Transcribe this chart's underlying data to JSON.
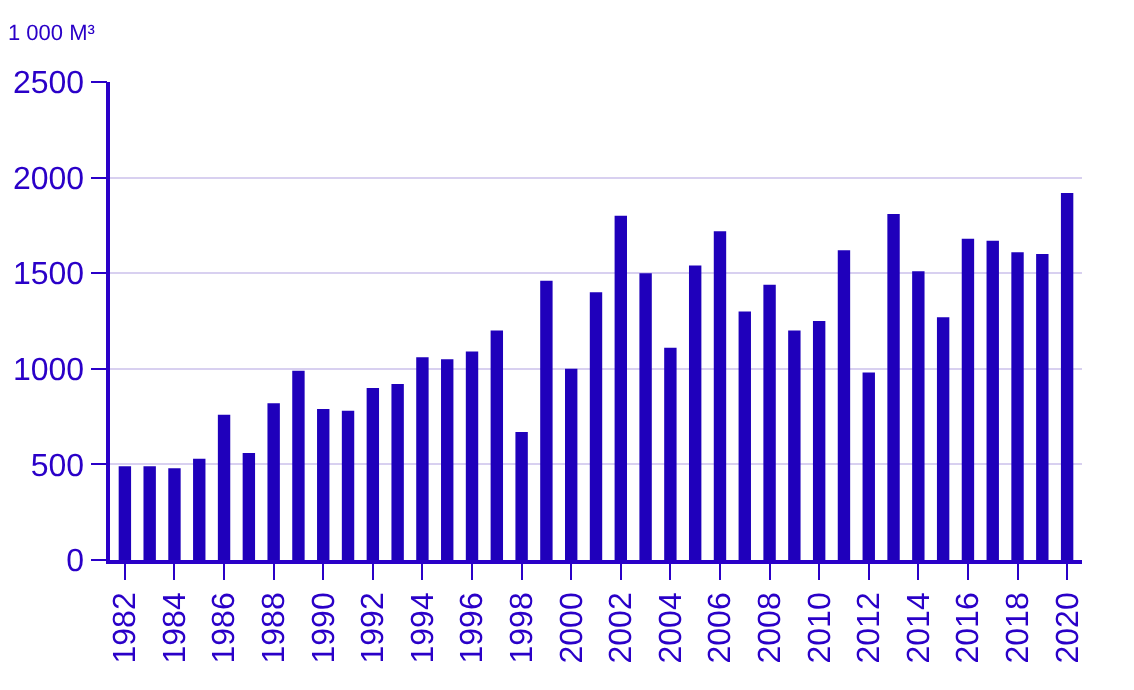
{
  "chart_data": {
    "type": "bar",
    "ylabel": "1 000 M³",
    "categories": [
      "1982",
      null,
      "1984",
      null,
      "1986",
      null,
      "1988",
      null,
      "1990",
      null,
      "1992",
      null,
      "1994",
      null,
      "1996",
      null,
      "1998",
      null,
      "2000",
      null,
      "2002",
      null,
      "2004",
      null,
      "2006",
      null,
      "2008",
      null,
      "2010",
      null,
      "2012",
      null,
      "2014",
      null,
      "2016",
      null,
      "2018",
      null,
      "2020"
    ],
    "values": [
      490,
      490,
      480,
      530,
      760,
      560,
      820,
      990,
      790,
      780,
      900,
      920,
      1060,
      1050,
      1090,
      1200,
      670,
      1460,
      1000,
      1400,
      1800,
      1500,
      1110,
      1540,
      1720,
      1300,
      1440,
      1200,
      1250,
      1620,
      980,
      1810,
      1510,
      1270,
      1680,
      1670,
      1610,
      1600,
      1920
    ],
    "color": "#1f00bb",
    "ylim": [
      0,
      2500
    ],
    "yticks": [
      0,
      500,
      1000,
      1500,
      2000,
      2500
    ],
    "grid": "y"
  }
}
